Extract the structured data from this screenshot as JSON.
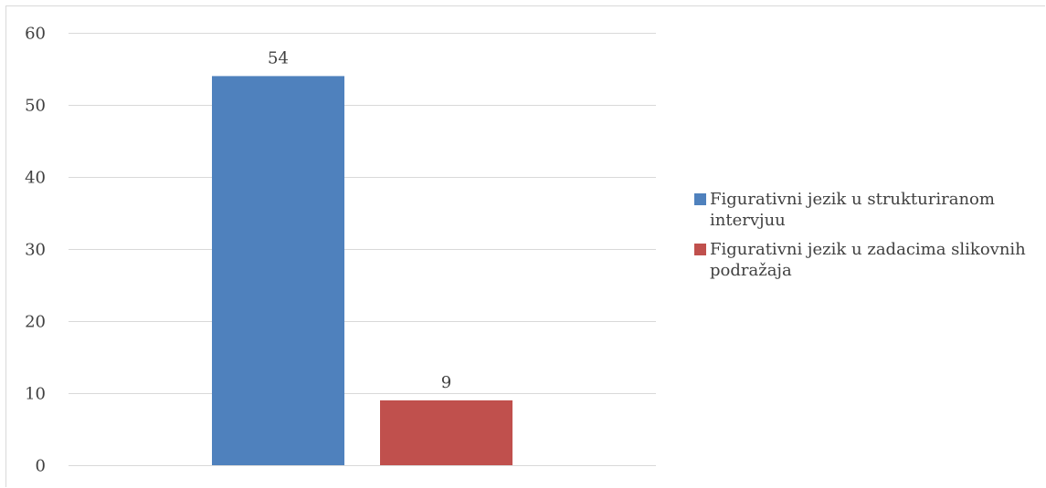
{
  "chart_data": {
    "type": "bar",
    "title": "",
    "xlabel": "",
    "ylabel": "",
    "categories": [
      ""
    ],
    "ylim": [
      0,
      60
    ],
    "yticks": [
      0,
      10,
      20,
      30,
      40,
      50,
      60
    ],
    "grid": true,
    "legend_position": "right",
    "series": [
      {
        "name": "Figurativni jezik u strukturiranom intervjuu",
        "values": [
          54
        ],
        "color": "#4f81bd",
        "data_label": "54"
      },
      {
        "name": "Figurativni jezik u zadacima slikovnih podražaja",
        "values": [
          9
        ],
        "color": "#c0504d",
        "data_label": "9"
      }
    ]
  }
}
